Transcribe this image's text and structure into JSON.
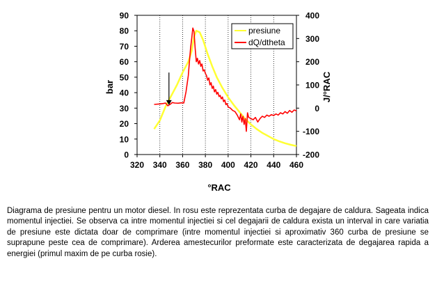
{
  "chart_data": {
    "type": "line",
    "xlabel": "°RAC",
    "ylabel_left": "bar",
    "ylabel_right": "J/°RAC",
    "xlim": [
      320,
      460
    ],
    "ylim_left": [
      0,
      90
    ],
    "ylim_right": [
      -200,
      400
    ],
    "x_ticks": [
      "320",
      "340",
      "360",
      "380",
      "400",
      "420",
      "440",
      "460"
    ],
    "y_left_ticks": [
      "0",
      "10",
      "20",
      "30",
      "40",
      "50",
      "60",
      "70",
      "80",
      "90"
    ],
    "y_right_ticks": [
      "-200",
      "-100",
      "0",
      "100",
      "200",
      "300",
      "400"
    ],
    "grid": "vertical",
    "legend_position": "top-right",
    "series": [
      {
        "name": "presiune",
        "axis": "left",
        "color": "#ffff33",
        "points": [
          [
            335,
            16.5
          ],
          [
            340,
            22
          ],
          [
            345,
            31
          ],
          [
            350,
            38
          ],
          [
            355,
            45
          ],
          [
            360,
            53
          ],
          [
            365,
            60
          ],
          [
            368,
            67
          ],
          [
            370,
            76
          ],
          [
            372,
            80
          ],
          [
            375,
            79
          ],
          [
            378,
            74
          ],
          [
            382,
            65
          ],
          [
            386,
            57
          ],
          [
            390,
            50
          ],
          [
            395,
            43
          ],
          [
            400,
            37
          ],
          [
            405,
            32
          ],
          [
            410,
            27.5
          ],
          [
            415,
            23
          ],
          [
            420,
            19.5
          ],
          [
            425,
            16.5
          ],
          [
            430,
            14
          ],
          [
            435,
            12
          ],
          [
            440,
            10
          ],
          [
            445,
            8.5
          ],
          [
            450,
            7.3
          ],
          [
            455,
            6.3
          ],
          [
            460,
            5.5
          ]
        ]
      },
      {
        "name": "dQ/dtheta",
        "axis": "right",
        "color": "#ff0000",
        "points": [
          [
            335,
            16
          ],
          [
            340,
            18
          ],
          [
            343,
            20
          ],
          [
            345,
            22
          ],
          [
            347,
            10
          ],
          [
            349,
            16
          ],
          [
            351,
            24
          ],
          [
            353,
            22
          ],
          [
            356,
            21
          ],
          [
            359,
            23
          ],
          [
            361,
            22
          ],
          [
            363,
            70
          ],
          [
            365,
            140
          ],
          [
            366,
            200
          ],
          [
            367,
            260
          ],
          [
            368,
            300
          ],
          [
            369,
            345
          ],
          [
            370,
            330
          ],
          [
            371,
            260
          ],
          [
            372,
            200
          ],
          [
            373,
            215
          ],
          [
            374,
            190
          ],
          [
            375,
            205
          ],
          [
            376,
            180
          ],
          [
            377,
            190
          ],
          [
            378,
            160
          ],
          [
            379,
            165
          ],
          [
            380,
            150
          ],
          [
            381,
            140
          ],
          [
            382,
            120
          ],
          [
            383,
            130
          ],
          [
            384,
            100
          ],
          [
            385,
            110
          ],
          [
            386,
            85
          ],
          [
            387,
            95
          ],
          [
            388,
            70
          ],
          [
            389,
            80
          ],
          [
            390,
            60
          ],
          [
            391,
            68
          ],
          [
            392,
            50
          ],
          [
            393,
            55
          ],
          [
            394,
            40
          ],
          [
            395,
            48
          ],
          [
            396,
            28
          ],
          [
            397,
            35
          ],
          [
            398,
            15
          ],
          [
            399,
            20
          ],
          [
            400,
            5
          ],
          [
            402,
            0
          ],
          [
            404,
            -10
          ],
          [
            406,
            -15
          ],
          [
            408,
            -30
          ],
          [
            410,
            -50
          ],
          [
            411,
            -25
          ],
          [
            412,
            -60
          ],
          [
            413,
            -35
          ],
          [
            414,
            -70
          ],
          [
            415,
            -45
          ],
          [
            416,
            -100
          ],
          [
            417,
            -20
          ],
          [
            418,
            -40
          ],
          [
            420,
            -45
          ],
          [
            422,
            -50
          ],
          [
            424,
            -40
          ],
          [
            426,
            -60
          ],
          [
            428,
            -45
          ],
          [
            430,
            -35
          ],
          [
            432,
            -40
          ],
          [
            434,
            -30
          ],
          [
            436,
            -35
          ],
          [
            438,
            -28
          ],
          [
            440,
            -32
          ],
          [
            442,
            -25
          ],
          [
            444,
            -30
          ],
          [
            446,
            -20
          ],
          [
            448,
            -25
          ],
          [
            450,
            -15
          ],
          [
            452,
            -22
          ],
          [
            454,
            -10
          ],
          [
            456,
            -18
          ],
          [
            458,
            -8
          ],
          [
            460,
            -12
          ]
        ]
      }
    ],
    "annotation": {
      "type": "arrow",
      "x": 348,
      "y_top": 53,
      "y_bottom": 32
    }
  },
  "caption": "Diagrama de presiune pentru un motor diesel. In rosu este reprezentata curba de degajare de caldura. Sageata indica momentul injectiei. Se observa ca intre momentul injectiei si cel degajarii de caldura exista un interval in care variatia de presiune este dictata doar de comprimare (intre momentul injectiei si aproximativ 360 curba de presiune se suprapune peste cea de comprimare). Arderea amestecurilor preformate este caracterizata de degajarea rapida a energiei (primul maxim de pe curba rosie)."
}
